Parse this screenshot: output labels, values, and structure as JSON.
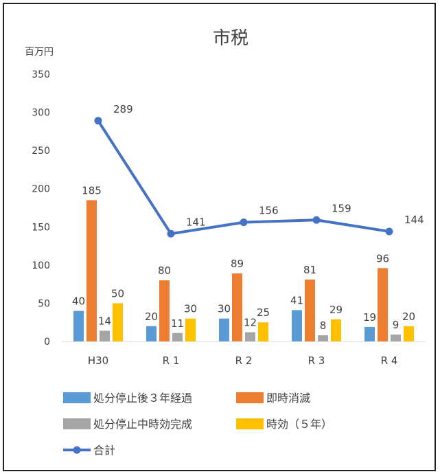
{
  "chart_data": {
    "type": "bar",
    "title": "市税",
    "ylabel": "百万円",
    "ylim": [
      0,
      350
    ],
    "yticks": [
      0,
      50,
      100,
      150,
      200,
      250,
      300,
      350
    ],
    "grid": false,
    "legend_position": "bottom",
    "categories": [
      "H30",
      "R 1",
      "R 2",
      "R 3",
      "R 4"
    ],
    "series": [
      {
        "name": "処分停止後３年経過",
        "type": "bar",
        "color": "#5B9BD5",
        "values": [
          40,
          20,
          30,
          41,
          19
        ]
      },
      {
        "name": "即時消滅",
        "type": "bar",
        "color": "#ED7D31",
        "values": [
          185,
          80,
          89,
          81,
          96
        ]
      },
      {
        "name": "処分停止中時効完成",
        "type": "bar",
        "color": "#A5A5A5",
        "values": [
          14,
          11,
          12,
          8,
          9
        ]
      },
      {
        "name": "時効（５年）",
        "type": "bar",
        "color": "#FFC000",
        "values": [
          50,
          30,
          25,
          29,
          20
        ]
      },
      {
        "name": "合計",
        "type": "line",
        "color": "#4472C4",
        "values": [
          289,
          141,
          156,
          159,
          144
        ]
      }
    ]
  }
}
